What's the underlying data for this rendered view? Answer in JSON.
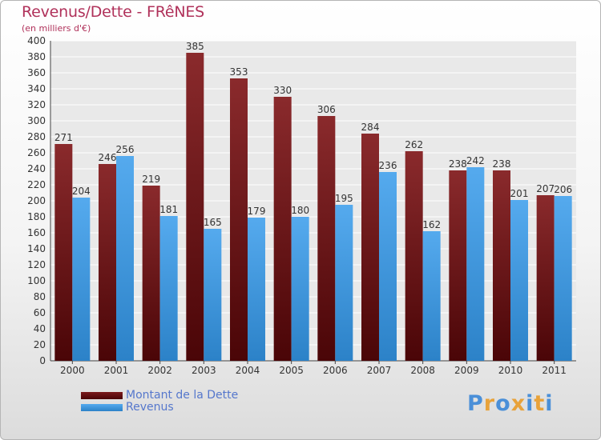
{
  "header": {
    "title": "Revenus/Dette - FRêNES",
    "subtitle": "(en milliers d'€)"
  },
  "chart_data": {
    "type": "bar",
    "title": "Revenus/Dette - FRêNES",
    "ylabel": "(en milliers d'€)",
    "xlabel": "",
    "categories": [
      "2000",
      "2001",
      "2002",
      "2003",
      "2004",
      "2005",
      "2006",
      "2007",
      "2008",
      "2009",
      "2010",
      "2011"
    ],
    "series": [
      {
        "name": "Montant de la Dette",
        "color": "#7a1a1c",
        "values": [
          271,
          246,
          219,
          385,
          353,
          330,
          306,
          284,
          262,
          238,
          238,
          207
        ]
      },
      {
        "name": "Revenus",
        "color": "#3f9ae0",
        "values": [
          204,
          256,
          181,
          165,
          179,
          180,
          195,
          236,
          162,
          242,
          201,
          206
        ]
      }
    ],
    "ylim": [
      0,
      400
    ],
    "ytick_step": 20,
    "grid": true,
    "legend": "bottom-left"
  },
  "legend": {
    "items": [
      {
        "label": "Montant de la Dette",
        "color": "#6b0f10"
      },
      {
        "label": "Revenus",
        "color": "#3f9ae0"
      }
    ]
  },
  "logo": {
    "text": [
      "P",
      "r",
      "o",
      "x",
      "i",
      "t",
      "i"
    ],
    "colors": [
      "#4a8fd8",
      "#e8a23a",
      "#4a8fd8",
      "#e8a23a",
      "#4a8fd8",
      "#e8a23a",
      "#4a8fd8"
    ]
  }
}
